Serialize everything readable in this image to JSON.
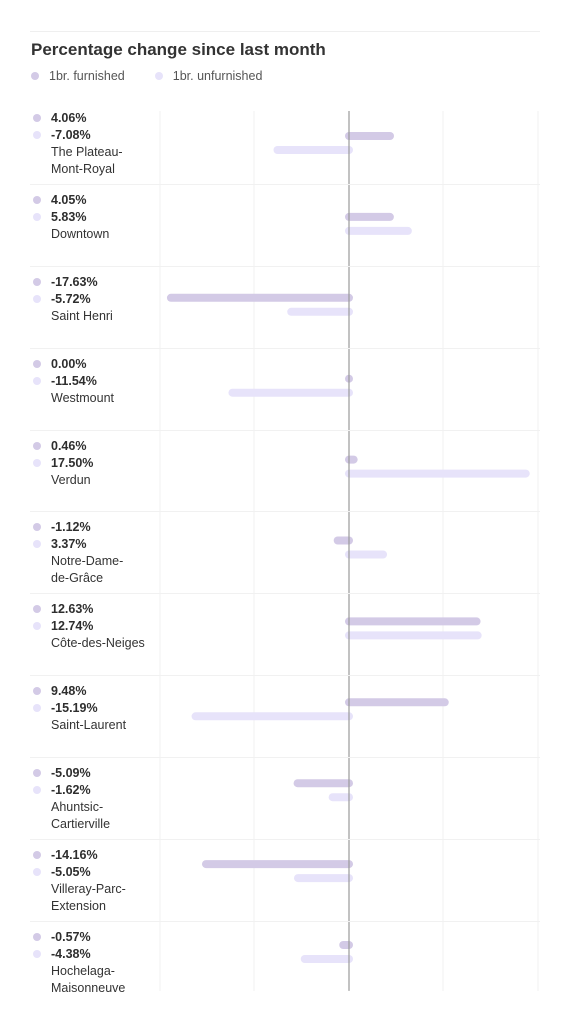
{
  "header": {
    "title": "Percentage change since last month"
  },
  "colors": {
    "furnished": "#d3cae6",
    "unfurnished": "#e7e3fa",
    "axis": "#9a9a9a",
    "grid": "#f0f0f0"
  },
  "chart_data": {
    "type": "bar",
    "orientation": "horizontal",
    "title": "Percentage change since last month",
    "unit": "%",
    "xlim": [
      -18.5,
      19.8
    ],
    "zero_line": true,
    "legend_position": "top-left",
    "categories": [
      "The Plateau-Mont-Royal",
      "Downtown",
      "Saint Henri",
      "Westmount",
      "Verdun",
      "Notre-Dame-de-Grâce",
      "Côte-des-Neiges",
      "Saint-Laurent",
      "Ahuntsic-Cartierville",
      "Villeray-Parc-Extension",
      "Hochelaga-Maisonneuve"
    ],
    "series": [
      {
        "name": "1br. furnished",
        "values": [
          4.06,
          4.05,
          -17.63,
          0.0,
          0.46,
          -1.12,
          12.63,
          9.48,
          -5.09,
          -14.16,
          -0.57
        ],
        "labels": [
          "4.06%",
          "4.05%",
          "-17.63%",
          "0.00%",
          "0.46%",
          "-1.12%",
          "12.63%",
          "9.48%",
          "-5.09%",
          "-14.16%",
          "-0.57%"
        ]
      },
      {
        "name": "1br. unfurnished",
        "values": [
          -7.08,
          5.83,
          -5.72,
          -11.54,
          17.5,
          3.37,
          12.74,
          -15.19,
          -1.62,
          -5.05,
          -4.38
        ],
        "labels": [
          "-7.08%",
          "5.83%",
          "-5.72%",
          "-11.54%",
          "17.50%",
          "3.37%",
          "12.74%",
          "-15.19%",
          "-1.62%",
          "-5.05%",
          "-4.38%"
        ]
      }
    ]
  },
  "rows": [
    {
      "name_lines": [
        "The Plateau-",
        "Mont-Royal"
      ],
      "furnished": "4.06%",
      "unfurnished": "-7.08%"
    },
    {
      "name_lines": [
        "Downtown"
      ],
      "furnished": "4.05%",
      "unfurnished": "5.83%"
    },
    {
      "name_lines": [
        "Saint Henri"
      ],
      "furnished": "-17.63%",
      "unfurnished": "-5.72%"
    },
    {
      "name_lines": [
        "Westmount"
      ],
      "furnished": "0.00%",
      "unfurnished": "-11.54%"
    },
    {
      "name_lines": [
        "Verdun"
      ],
      "furnished": "0.46%",
      "unfurnished": "17.50%"
    },
    {
      "name_lines": [
        "Notre-Dame-",
        "de-Grâce"
      ],
      "furnished": "-1.12%",
      "unfurnished": "3.37%"
    },
    {
      "name_lines": [
        "Côte-des-Neiges"
      ],
      "furnished": "12.63%",
      "unfurnished": "12.74%"
    },
    {
      "name_lines": [
        "Saint-Laurent"
      ],
      "furnished": "9.48%",
      "unfurnished": "-15.19%"
    },
    {
      "name_lines": [
        "Ahuntsic-",
        "Cartierville"
      ],
      "furnished": "-5.09%",
      "unfurnished": "-1.62%"
    },
    {
      "name_lines": [
        "Villeray-Parc-",
        "Extension"
      ],
      "furnished": "-14.16%",
      "unfurnished": "-5.05%"
    },
    {
      "name_lines": [
        "Hochelaga-",
        "Maisonneuve"
      ],
      "furnished": "-0.57%",
      "unfurnished": "-4.38%"
    }
  ]
}
